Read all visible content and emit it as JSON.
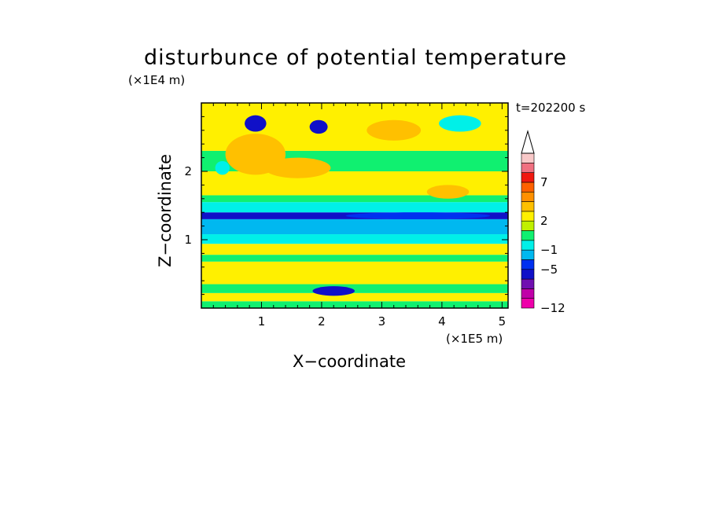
{
  "chart_data": {
    "type": "heatmap",
    "title": "disturbunce of potential temperature",
    "xlabel": "X−coordinate",
    "ylabel": "Z−coordinate",
    "x_unit": "(×1E5 m)",
    "y_unit": "(×1E4 m)",
    "time_label": "t=202200 s",
    "xlim": [
      0,
      5.1
    ],
    "ylim": [
      0,
      3.0
    ],
    "x_ticks": [
      {
        "value": 1,
        "label": "1"
      },
      {
        "value": 2,
        "label": "2"
      },
      {
        "value": 3,
        "label": "3"
      },
      {
        "value": 4,
        "label": "4"
      },
      {
        "value": 5,
        "label": "5"
      }
    ],
    "y_ticks": [
      {
        "value": 1,
        "label": "1"
      },
      {
        "value": 2,
        "label": "2"
      }
    ],
    "colorbar": {
      "levels": [
        -12,
        -10,
        -8,
        -6,
        -5,
        -3,
        -1,
        0,
        1,
        2,
        3,
        5,
        6,
        7,
        8,
        10
      ],
      "labeled": [
        {
          "value": 7,
          "label": "7"
        },
        {
          "value": 2,
          "label": "2"
        },
        {
          "value": -1,
          "label": "−1"
        },
        {
          "value": -5,
          "label": "−5"
        },
        {
          "value": -12,
          "label": "−12"
        }
      ],
      "colors": [
        "#ee00aa",
        "#c000a8",
        "#7010b0",
        "#1010c8",
        "#0030f0",
        "#00b8f0",
        "#00f0e8",
        "#10f070",
        "#c0f000",
        "#fff000",
        "#ffc000",
        "#ff9000",
        "#ff6000",
        "#f01810",
        "#f07080",
        "#f8c8c8"
      ]
    },
    "bands": [
      {
        "z0": 0.0,
        "z1": 0.1,
        "color": "#10f070"
      },
      {
        "z0": 0.1,
        "z1": 0.22,
        "color": "#fff000"
      },
      {
        "z0": 0.22,
        "z1": 0.35,
        "color": "#10f070"
      },
      {
        "z0": 0.35,
        "z1": 0.68,
        "color": "#fff000"
      },
      {
        "z0": 0.68,
        "z1": 0.78,
        "color": "#10f070"
      },
      {
        "z0": 0.78,
        "z1": 0.94,
        "color": "#fff000"
      },
      {
        "z0": 0.94,
        "z1": 1.08,
        "color": "#00f0e8"
      },
      {
        "z0": 1.08,
        "z1": 1.3,
        "color": "#00b8f0"
      },
      {
        "z0": 1.3,
        "z1": 1.4,
        "color": "#1010c8"
      },
      {
        "z0": 1.4,
        "z1": 1.55,
        "color": "#00f0e8"
      },
      {
        "z0": 1.55,
        "z1": 1.65,
        "color": "#10f070"
      },
      {
        "z0": 1.65,
        "z1": 2.0,
        "color": "#fff000"
      },
      {
        "z0": 2.0,
        "z1": 2.3,
        "color": "#10f070"
      },
      {
        "z0": 2.3,
        "z1": 3.0,
        "color": "#fff000"
      }
    ],
    "blobs": [
      {
        "x": 0.9,
        "z": 2.7,
        "rx": 0.18,
        "rz": 0.12,
        "color": "#1010c8"
      },
      {
        "x": 1.95,
        "z": 2.65,
        "rx": 0.15,
        "rz": 0.1,
        "color": "#1010c8"
      },
      {
        "x": 1.6,
        "z": 2.05,
        "rx": 0.55,
        "rz": 0.15,
        "color": "#ffc000"
      },
      {
        "x": 3.2,
        "z": 2.6,
        "rx": 0.45,
        "rz": 0.15,
        "color": "#ffc000"
      },
      {
        "x": 4.1,
        "z": 1.7,
        "rx": 0.35,
        "rz": 0.1,
        "color": "#ffc000"
      },
      {
        "x": 0.9,
        "z": 2.25,
        "rx": 0.5,
        "rz": 0.3,
        "color": "#ffc000"
      },
      {
        "x": 0.35,
        "z": 2.05,
        "rx": 0.12,
        "rz": 0.1,
        "color": "#00f0e8"
      },
      {
        "x": 4.3,
        "z": 2.7,
        "rx": 0.35,
        "rz": 0.12,
        "color": "#00f0e8"
      },
      {
        "x": 2.2,
        "z": 0.25,
        "rx": 0.35,
        "rz": 0.07,
        "color": "#1010c8"
      },
      {
        "x": 3.6,
        "z": 1.35,
        "rx": 1.2,
        "rz": 0.05,
        "color": "#0030f0"
      }
    ]
  }
}
